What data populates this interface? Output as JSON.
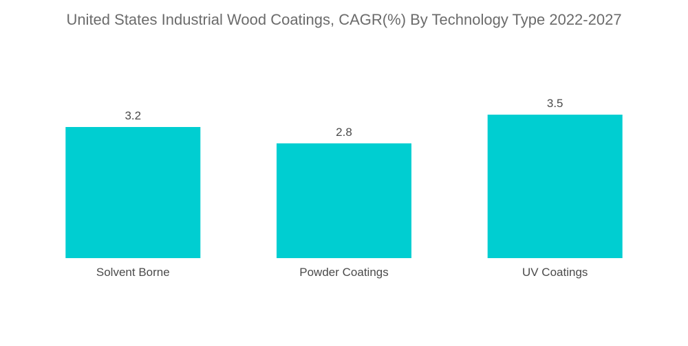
{
  "chart_data": {
    "type": "bar",
    "title": "United States Industrial Wood Coatings, CAGR(%) By Technology Type 2022-2027",
    "categories": [
      "Solvent Borne",
      "Powder Coatings",
      "UV Coatings"
    ],
    "values": [
      3.2,
      2.8,
      3.5
    ],
    "data_labels": [
      "3.2",
      "2.8",
      "3.5"
    ],
    "xlabel": "",
    "ylabel": "",
    "ylim": [
      0,
      3.5
    ],
    "grid": false,
    "legend": "none",
    "bar_color": "#00CED1"
  }
}
